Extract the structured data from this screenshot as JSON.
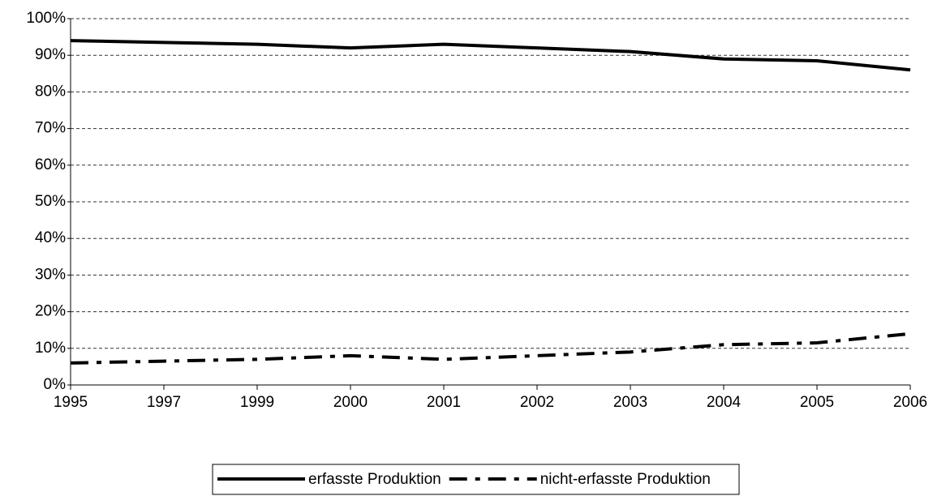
{
  "chart_data": {
    "type": "line",
    "categories": [
      "1995",
      "1997",
      "1999",
      "2000",
      "2001",
      "2002",
      "2003",
      "2004",
      "2005",
      "2006"
    ],
    "series": [
      {
        "name": "erfasste Produktion",
        "color": "#000000",
        "dash": "solid",
        "values": [
          94,
          93.5,
          93,
          92,
          93,
          92,
          91,
          89,
          88.5,
          86
        ]
      },
      {
        "name": "nicht-erfasste Produktion",
        "color": "#000000",
        "dash": "dash-dot",
        "values": [
          6,
          6.5,
          7,
          8,
          7,
          8,
          9,
          11,
          11.5,
          14
        ]
      }
    ],
    "ylim": [
      0,
      100
    ],
    "yticks": [
      {
        "value": 0,
        "label": "0%"
      },
      {
        "value": 10,
        "label": "10%"
      },
      {
        "value": 20,
        "label": "20%"
      },
      {
        "value": 30,
        "label": "30%"
      },
      {
        "value": 40,
        "label": "40%"
      },
      {
        "value": 50,
        "label": "50%"
      },
      {
        "value": 60,
        "label": "60%"
      },
      {
        "value": 70,
        "label": "70%"
      },
      {
        "value": 80,
        "label": "80%"
      },
      {
        "value": 90,
        "label": "90%"
      },
      {
        "value": 100,
        "label": "100%"
      }
    ],
    "grid": true,
    "legend": "bottom"
  }
}
